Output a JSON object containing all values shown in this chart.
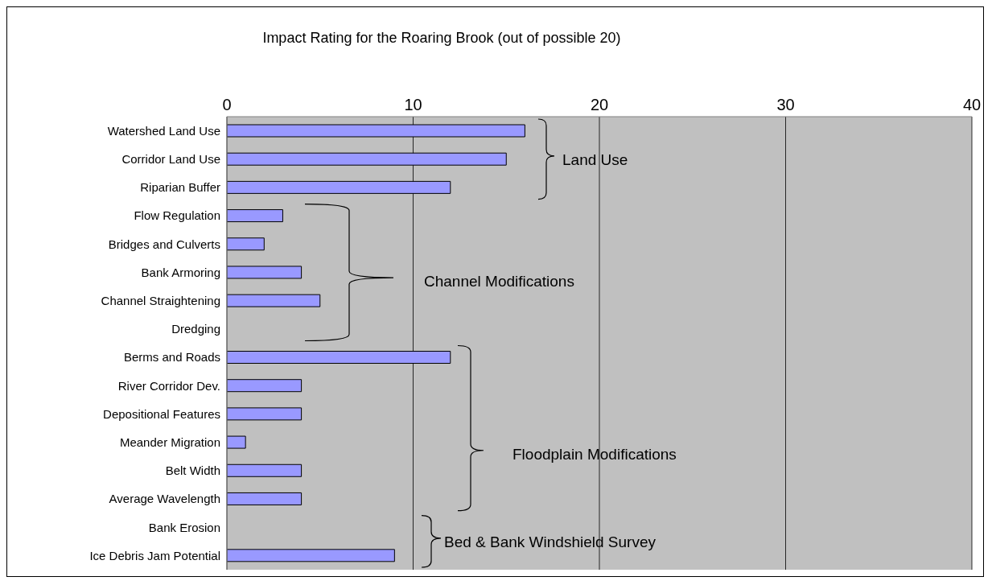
{
  "chart_data": {
    "type": "bar",
    "orientation": "horizontal",
    "title": "Impact Rating for the Roaring Brook (out of possible 20)",
    "categories": [
      "Watershed Land Use",
      "Corridor Land Use",
      "Riparian Buffer",
      "Flow  Regulation",
      "Bridges and Culverts",
      "Bank Armoring",
      "Channel Straightening",
      "Dredging",
      "Berms and Roads",
      "River Corridor Dev.",
      "Depositional Features",
      "Meander Migration",
      "Belt Width",
      "Average Wavelength",
      "Bank Erosion",
      "Ice Debris Jam Potential"
    ],
    "values": [
      16,
      15,
      12,
      3,
      2,
      4,
      5,
      0,
      12,
      4,
      4,
      1,
      4,
      4,
      0,
      9
    ],
    "color": "#9999ff",
    "xlim": [
      0,
      40
    ],
    "xticks": [
      0,
      10,
      20,
      30,
      40
    ],
    "grid": "x",
    "annotations": [
      "Land Use",
      "Channel Modifications",
      "Floodplain Modifications",
      "Bed & Bank Windshield Survey"
    ]
  }
}
